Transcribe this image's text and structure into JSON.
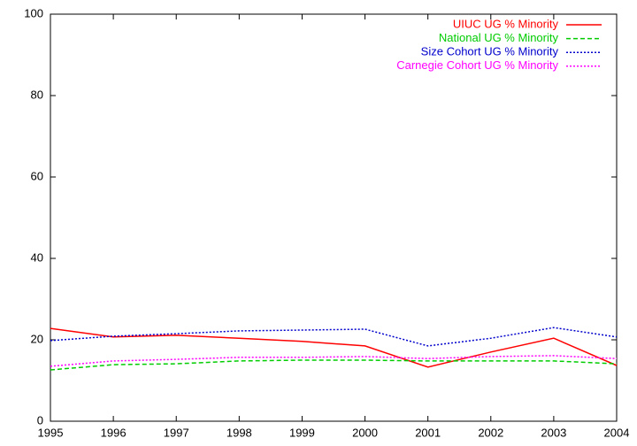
{
  "chart_data": {
    "type": "line",
    "x": [
      1995,
      1996,
      1997,
      1998,
      1999,
      2000,
      2001,
      2002,
      2003,
      2004
    ],
    "xlim": [
      1995,
      2004
    ],
    "xticks": [
      1995,
      1996,
      1997,
      1998,
      1999,
      2000,
      2001,
      2002,
      2003,
      2004
    ],
    "ylim": [
      0,
      100
    ],
    "yticks": [
      0,
      20,
      40,
      60,
      80,
      100
    ],
    "legend": "top-right",
    "series": [
      {
        "name": "UIUC UG % Minority",
        "color": "#ff0000",
        "dash": "solid",
        "values": [
          22.8,
          20.7,
          21.1,
          20.4,
          19.6,
          18.5,
          13.3,
          17.0,
          20.4,
          13.7
        ]
      },
      {
        "name": "National UG % Minority",
        "color": "#00cc00",
        "dash": "dashed",
        "values": [
          12.6,
          13.9,
          14.1,
          14.8,
          15.0,
          15.0,
          14.8,
          14.8,
          14.8,
          14.1
        ]
      },
      {
        "name": "Size Cohort UG % Minority",
        "color": "#0000cc",
        "dash": "dotted",
        "values": [
          19.8,
          20.9,
          21.5,
          22.2,
          22.4,
          22.6,
          18.5,
          20.4,
          23.0,
          20.7
        ]
      },
      {
        "name": "Carnegie Cohort UG % Minority",
        "color": "#ff00ff",
        "dash": "dotted",
        "values": [
          13.5,
          14.8,
          15.2,
          15.7,
          15.7,
          15.9,
          15.4,
          15.9,
          16.1,
          15.4
        ]
      }
    ]
  }
}
